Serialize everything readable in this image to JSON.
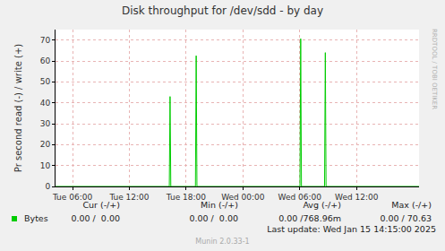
{
  "chart_data": {
    "type": "line",
    "title": "Disk throughput for /dev/sdd - by day",
    "y_label": "Pr second read (-) / write (+)",
    "x": [
      4.2,
      16.22,
      16.3,
      16.38,
      18.98,
      19.06,
      19.14,
      30.02,
      30.1,
      30.18,
      32.62,
      32.7,
      32.78,
      42.6
    ],
    "series": [
      {
        "name": "Bytes",
        "color": "#00cc00",
        "values": [
          0,
          0,
          43,
          0,
          0,
          62.5,
          0,
          0,
          70.63,
          0,
          0,
          64,
          0,
          0
        ]
      }
    ],
    "xlim": [
      4.2,
      42.6
    ],
    "xticks": [
      {
        "value": 6,
        "label": "Tue 06:00"
      },
      {
        "value": 12,
        "label": "Tue 12:00"
      },
      {
        "value": 18,
        "label": "Tue 18:00"
      },
      {
        "value": 24,
        "label": "Wed 00:00"
      },
      {
        "value": 30,
        "label": "Wed 06:00"
      },
      {
        "value": 36,
        "label": "Wed 12:00"
      }
    ],
    "ylim": [
      0,
      75
    ],
    "yticks": [
      0,
      10,
      20,
      30,
      40,
      50,
      60,
      70
    ],
    "grid": true,
    "legend_table": {
      "headers": [
        "Cur (-/+)",
        "Min (-/+)",
        "Avg (-/+)",
        "Max (-/+)"
      ],
      "rows": [
        {
          "name": "Bytes",
          "values": [
            "0.00 /  0.00",
            "0.00 /  0.00",
            "0.00 /768.96m",
            "0.00 / 70.63"
          ]
        }
      ]
    },
    "footer": "Last update: Wed Jan 15 14:15:00 2025",
    "credit": "Munin 2.0.33-1",
    "side_text": "RRDTOOL / TOBI OETIKER"
  }
}
